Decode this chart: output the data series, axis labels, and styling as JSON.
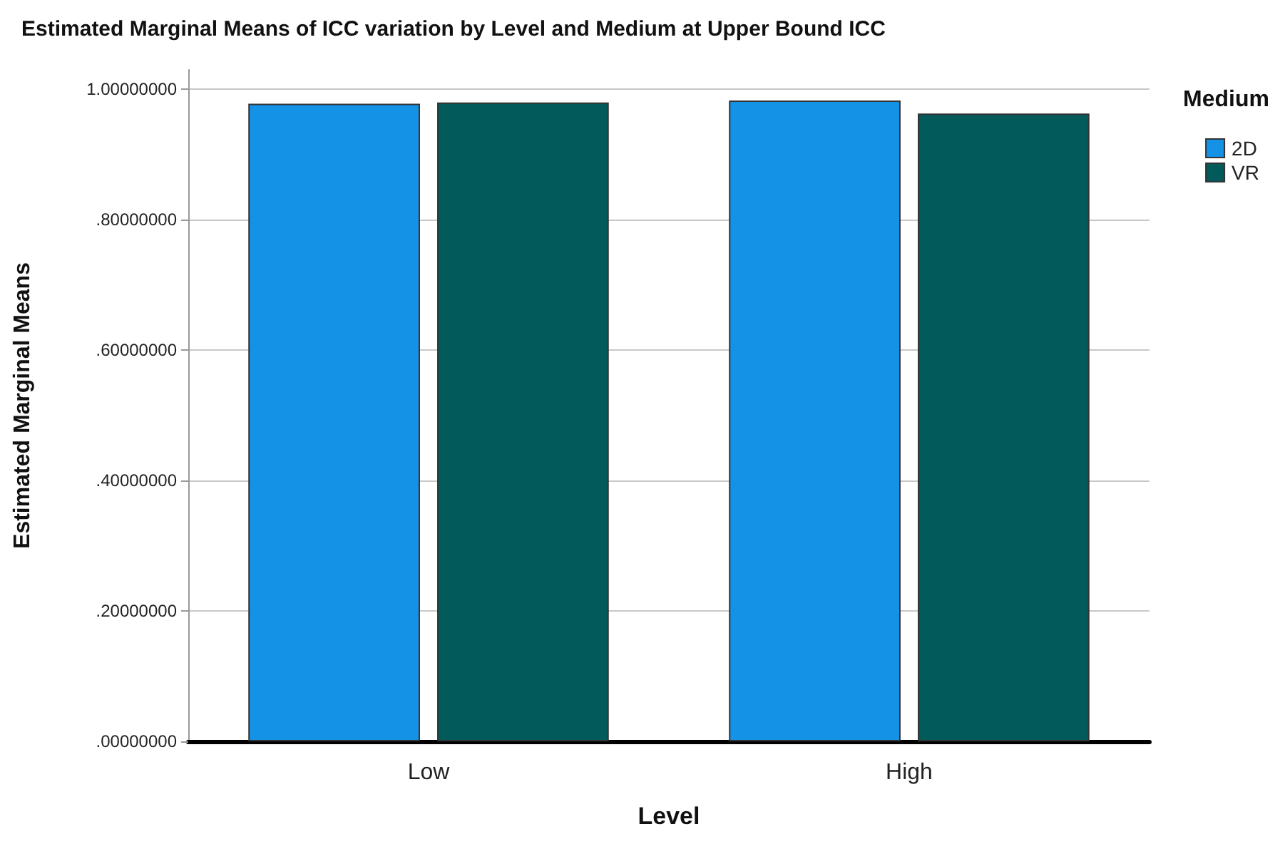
{
  "chart_data": {
    "type": "bar",
    "title": "Estimated Marginal Means of ICC variation by Level and Medium at Upper Bound ICC",
    "xlabel": "Level",
    "ylabel": "Estimated Marginal Means",
    "legend_title": "Medium",
    "categories": [
      "Low",
      "High"
    ],
    "series": [
      {
        "name": "2D",
        "color": "#1492e6",
        "values": [
          0.978,
          0.983
        ]
      },
      {
        "name": "VR",
        "color": "#025a5a",
        "values": [
          0.98,
          0.963
        ]
      }
    ],
    "ylim": [
      0,
      1.03
    ],
    "yticks": [
      {
        "value": 0,
        "label": ".00000000"
      },
      {
        "value": 0.2,
        "label": ".20000000"
      },
      {
        "value": 0.4,
        "label": ".40000000"
      },
      {
        "value": 0.6,
        "label": ".60000000"
      },
      {
        "value": 0.8,
        "label": ".80000000"
      },
      {
        "value": 1,
        "label": "1.00000000"
      }
    ],
    "grid": "y",
    "legend": "top right"
  }
}
